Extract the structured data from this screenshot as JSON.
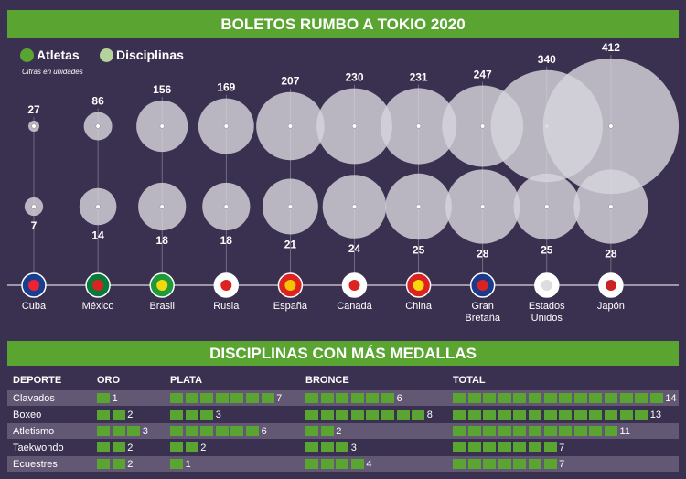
{
  "title": "BOLETOS RUMBO A TOKIO 2020",
  "legend": [
    {
      "label": "Atletas",
      "color": "#5aa532"
    },
    {
      "label": "Disciplinas",
      "color": "#b5d19c"
    }
  ],
  "note": "Cifras en unidades",
  "chart_data": [
    {
      "type": "bubble",
      "title": "BOLETOS RUMBO A TOKIO 2020",
      "categories": [
        "Cuba",
        "México",
        "Brasil",
        "Rusia",
        "España",
        "Canadá",
        "China",
        "Gran Bretaña",
        "Estados Unidos",
        "Japón"
      ],
      "series": [
        {
          "name": "Atletas",
          "values": [
            27,
            86,
            156,
            169,
            207,
            230,
            231,
            247,
            340,
            412
          ]
        },
        {
          "name": "Disciplinas",
          "values": [
            7,
            14,
            18,
            18,
            21,
            24,
            25,
            28,
            25,
            28
          ]
        }
      ],
      "bubble_color": "#d6d4dc"
    },
    {
      "type": "table",
      "title": "DISCIPLINAS CON MÁS MEDALLAS",
      "columns": [
        "DEPORTE",
        "ORO",
        "PLATA",
        "BRONCE",
        "TOTAL"
      ],
      "rows": [
        [
          "Clavados",
          1,
          7,
          6,
          14
        ],
        [
          "Boxeo",
          2,
          3,
          8,
          13
        ],
        [
          "Atletismo",
          3,
          6,
          2,
          11
        ],
        [
          "Taekwondo",
          2,
          2,
          3,
          7
        ],
        [
          "Ecuestres",
          2,
          1,
          4,
          7
        ]
      ]
    }
  ],
  "country_labels": [
    [
      "Cuba"
    ],
    [
      "México"
    ],
    [
      "Brasil"
    ],
    [
      "Rusia"
    ],
    [
      "España"
    ],
    [
      "Canadá"
    ],
    [
      "China"
    ],
    [
      "Gran",
      "Bretaña"
    ],
    [
      "Estados",
      "Unidos"
    ],
    [
      "Japón"
    ]
  ],
  "flags": [
    "cuba-flag",
    "mexico-flag",
    "brazil-flag",
    "russia-flag",
    "spain-flag",
    "canada-flag",
    "china-flag",
    "uk-flag",
    "usa-flag",
    "japan-flag"
  ]
}
